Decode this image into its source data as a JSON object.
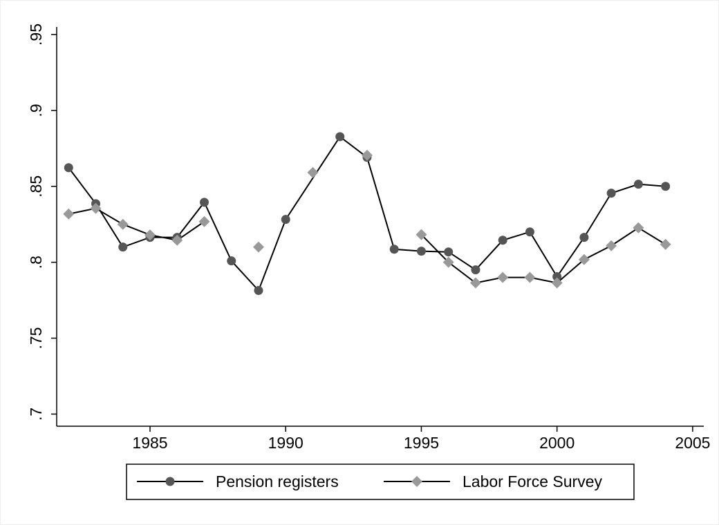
{
  "chart_data": {
    "type": "line",
    "xlim": [
      1981.56,
      2005.41
    ],
    "xticks": [
      1985,
      1990,
      1995,
      2000,
      2005
    ],
    "ylim": [
      0.692,
      0.955
    ],
    "yticks": [
      {
        "value": 0.7,
        "label": ".7"
      },
      {
        "value": 0.75,
        "label": ".75"
      },
      {
        "value": 0.8,
        "label": ".8"
      },
      {
        "value": 0.85,
        "label": ".85"
      },
      {
        "value": 0.9,
        "label": ".9"
      },
      {
        "value": 0.95,
        "label": ".95"
      }
    ],
    "legend": "bottom",
    "series": [
      {
        "name": "Pension registers",
        "color": "#555555",
        "marker": "circle",
        "x": [
          1982,
          1983,
          1984,
          1985,
          1986,
          1987,
          1988,
          1989,
          1990,
          1992,
          1993,
          1994,
          1995,
          1996,
          1997,
          1998,
          1999,
          2000,
          2001,
          2002,
          2003,
          2004
        ],
        "values": [
          0.8623,
          0.8386,
          0.81,
          0.8164,
          0.8164,
          0.8395,
          0.8009,
          0.7814,
          0.8282,
          0.8827,
          0.8691,
          0.8086,
          0.8073,
          0.8068,
          0.795,
          0.8145,
          0.82,
          0.7905,
          0.8164,
          0.8455,
          0.8514,
          0.85
        ]
      },
      {
        "name": "Labor Force Survey",
        "color": "#999999",
        "marker": "diamond",
        "x": [
          1982,
          1983,
          1984,
          1985,
          1986,
          1987,
          1988,
          1989,
          1990,
          1991,
          1992,
          1993,
          1994,
          1995,
          1996,
          1997,
          1998,
          1999,
          2000,
          2001,
          2002,
          2003,
          2004
        ],
        "values": [
          0.8318,
          0.8355,
          0.825,
          0.818,
          0.8145,
          0.8268,
          null,
          0.81,
          null,
          0.8591,
          null,
          0.8705,
          null,
          0.8182,
          0.8,
          0.7864,
          0.79,
          0.79,
          0.7864,
          0.8018,
          0.8109,
          0.8227,
          0.8118
        ]
      }
    ]
  }
}
